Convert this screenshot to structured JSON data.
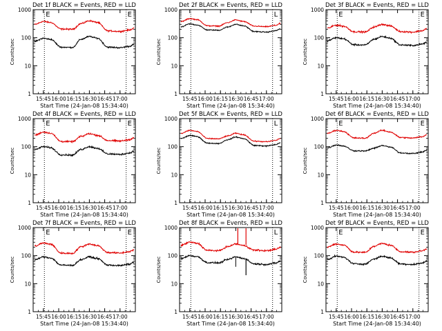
{
  "chart_data": {
    "type": "line",
    "x_tick_labels": [
      "15:45",
      "16:00",
      "16:15",
      "16:30",
      "16:45",
      "17:00"
    ],
    "x_tick_minutes": [
      15,
      30,
      45,
      60,
      75,
      90
    ],
    "x_range_minutes": [
      5,
      105
    ],
    "y_scale": "log",
    "y_range": [
      1,
      1000
    ],
    "y_tick_labels": [
      "1",
      "10",
      "100",
      "1000"
    ],
    "ylabel": "Counts/sec",
    "xlabel": "Start Time (24-Jan-08 15:34:40)",
    "series_names": [
      "Events",
      "LLD"
    ],
    "series_colors": {
      "Events": "#000000",
      "LLD": "#e00000"
    },
    "vline_markers": [
      "E",
      "E"
    ],
    "vline_minutes": [
      16,
      96
    ],
    "panels": [
      {
        "title": "Det 1f BLACK = Events, RED = LLD",
        "markers": [
          "E",
          "E"
        ],
        "llb": [
          380,
          200,
          400,
          190
        ],
        "ev": [
          95,
          45,
          110,
          50
        ],
        "wig": 0.07
      },
      {
        "title": "Det 2f BLACK = Events, RED = LLD",
        "markers": [
          "",
          "L"
        ],
        "llb": [
          480,
          260,
          430,
          280
        ],
        "ev": [
          310,
          185,
          300,
          180
        ],
        "wig": 0.05
      },
      {
        "title": "Det 3f BLACK = Events, RED = LLD",
        "markers": [
          "E",
          "E"
        ],
        "llb": [
          280,
          160,
          300,
          180
        ],
        "ev": [
          100,
          55,
          110,
          60
        ],
        "wig": 0.08
      },
      {
        "title": "Det 4f BLACK = Events, RED = LLD",
        "markers": [
          "E",
          "E"
        ],
        "llb": [
          330,
          150,
          290,
          180
        ],
        "ev": [
          100,
          50,
          100,
          60
        ],
        "wig": 0.08
      },
      {
        "title": "Det 5f BLACK = Events, RED = LLD",
        "markers": [
          "",
          "L"
        ],
        "llb": [
          380,
          190,
          300,
          170
        ],
        "ev": [
          250,
          130,
          220,
          120
        ],
        "wig": 0.05
      },
      {
        "title": "Det 6f BLACK = Events, RED = LLD",
        "markers": [
          "E",
          "E"
        ],
        "llb": [
          380,
          200,
          380,
          230
        ],
        "ev": [
          115,
          70,
          110,
          65
        ],
        "wig": 0.06
      },
      {
        "title": "Det 7f BLACK = Events, RED = LLD",
        "markers": [
          "E",
          "E"
        ],
        "llb": [
          280,
          120,
          260,
          140
        ],
        "ev": [
          90,
          45,
          90,
          50
        ],
        "wig": 0.08
      },
      {
        "title": "Det 8f BLACK = Events, RED = LLD",
        "markers": [
          "",
          "L"
        ],
        "llb": [
          300,
          150,
          260,
          170
        ],
        "ev": [
          100,
          55,
          90,
          55
        ],
        "wig": 0.08,
        "spike": true
      },
      {
        "title": "Det 9f BLACK = Events, RED = LLD",
        "markers": [
          "E",
          "E"
        ],
        "llb": [
          260,
          130,
          270,
          150
        ],
        "ev": [
          95,
          50,
          95,
          55
        ],
        "wig": 0.08
      }
    ]
  }
}
